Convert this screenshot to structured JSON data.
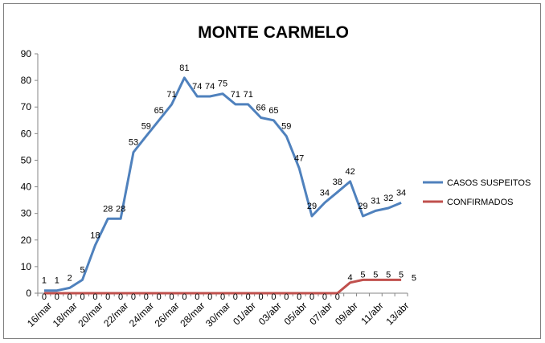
{
  "chart_data": {
    "type": "line",
    "title": "MONTE CARMELO",
    "xlabel": "",
    "ylabel": "",
    "ylim": [
      0,
      90
    ],
    "yticks": [
      "0",
      "10",
      "20",
      "30",
      "40",
      "50",
      "60",
      "70",
      "80",
      "90"
    ],
    "grid": false,
    "legend_position": "right",
    "x": [
      "16/mar",
      "17/mar",
      "18/mar",
      "19/mar",
      "20/mar",
      "21/mar",
      "22/mar",
      "23/mar",
      "24/mar",
      "25/mar",
      "26/mar",
      "27/mar",
      "28/mar",
      "29/mar",
      "30/mar",
      "31/mar",
      "01/abr",
      "02/abr",
      "03/abr",
      "04/abr",
      "05/abr",
      "06/abr",
      "07/abr",
      "08/abr",
      "09/abr",
      "10/abr",
      "11/abr",
      "12/abr",
      "13/abr"
    ],
    "xtick_labels": [
      "16/mar",
      "18/mar",
      "20/mar",
      "22/mar",
      "24/mar",
      "26/mar",
      "28/mar",
      "30/mar",
      "01/abr",
      "03/abr",
      "05/abr",
      "07/abr",
      "09/abr",
      "11/abr",
      "13/abr"
    ],
    "series": [
      {
        "name": "CASOS SUSPEITOS",
        "color": "#4f81bd",
        "values": [
          1,
          1,
          2,
          5,
          18,
          28,
          28,
          53,
          59,
          65,
          71,
          81,
          74,
          74,
          75,
          71,
          71,
          66,
          65,
          59,
          47,
          29,
          34,
          38,
          42,
          29,
          31,
          32,
          34
        ]
      },
      {
        "name": "CONFIRMADOS",
        "color": "#c0504d",
        "values": [
          0,
          0,
          0,
          0,
          0,
          0,
          0,
          0,
          0,
          0,
          0,
          0,
          0,
          0,
          0,
          0,
          0,
          0,
          0,
          0,
          0,
          0,
          0,
          0,
          4,
          5,
          5,
          5,
          5
        ],
        "extra_label": "5"
      }
    ]
  }
}
